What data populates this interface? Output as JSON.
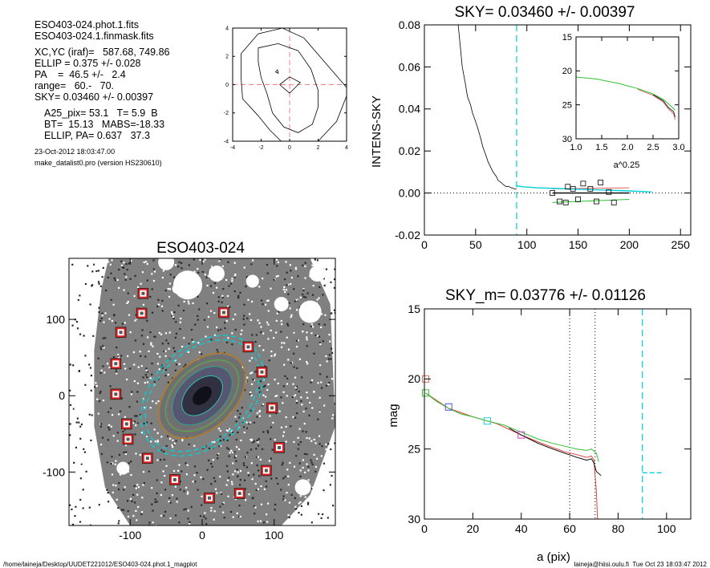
{
  "info": {
    "lines_a": [
      "ESO403-024.phot.1.fits",
      "ESO403-024.1.finmask.fits"
    ],
    "lines_b": [
      "XC,YC (iraf)=   587.68, 749.86",
      "ELLIP = 0.375 +/- 0.028",
      "PA    =  46.5 +/-   2.4",
      "range=   60.-   70.",
      "SKY= 0.03460 +/- 0.00397"
    ],
    "lines_c": [
      "A25_pix= 53.1   T= 5.9  B",
      "BT=  15.13   MABS=-18.33",
      "ELLIP, PA= 0.637   37.3"
    ],
    "date": "23-Oct-2012 18:03:47.00",
    "program": "make_datalist0.pro (version HS230610)"
  },
  "footer": {
    "path": "/home/laineja/Desktop/UUDET221012/ESO403-024.phot.1_magplot",
    "user": "laineja@hiisi.oulu.fi  Tue Oct 23 18:03:47 2012"
  },
  "colors": {
    "accent_cyan": "#00d0d8",
    "mask_red": "#e02020",
    "ellipse_orange": "#b87a1a"
  },
  "chart_data": [
    {
      "id": "contour",
      "type": "contour",
      "title": "",
      "xlim": [
        -4,
        4
      ],
      "ylim": [
        -4,
        4
      ],
      "xticks": [
        -4,
        -2,
        0,
        2,
        4
      ],
      "yticks": [
        -4,
        -2,
        0,
        2,
        4
      ],
      "contours": [
        [
          [
            -3.4,
            2.2
          ],
          [
            -2.2,
            3.6
          ],
          [
            -0.5,
            4.0
          ],
          [
            1.0,
            3.3
          ],
          [
            2.8,
            1.2
          ],
          [
            4.0,
            -0.2
          ],
          [
            4.0,
            -0.8
          ],
          [
            3.3,
            -2.6
          ],
          [
            2.0,
            -4.0
          ],
          [
            -0.6,
            -4.0
          ],
          [
            -1.4,
            -3.2
          ],
          [
            -2.2,
            -2.2
          ],
          [
            -3.3,
            -1.0
          ],
          [
            -3.4,
            0.4
          ],
          [
            -3.4,
            2.2
          ]
        ],
        [
          [
            -2.2,
            2.6
          ],
          [
            -0.8,
            2.9
          ],
          [
            0.6,
            2.4
          ],
          [
            1.5,
            1.1
          ],
          [
            2.0,
            -0.4
          ],
          [
            2.0,
            -1.6
          ],
          [
            1.6,
            -2.8
          ],
          [
            0.6,
            -3.4
          ],
          [
            -0.4,
            -3.0
          ],
          [
            -1.2,
            -2.0
          ],
          [
            -1.6,
            -0.6
          ],
          [
            -2.0,
            0.5
          ],
          [
            -2.2,
            1.6
          ],
          [
            -2.2,
            2.6
          ]
        ],
        [
          [
            -0.7,
            0.0
          ],
          [
            0.0,
            0.55
          ],
          [
            0.75,
            0.15
          ],
          [
            0.0,
            -0.6
          ],
          [
            -0.7,
            0.0
          ]
        ],
        [
          [
            -1.0,
            0.9
          ],
          [
            -0.85,
            1.05
          ],
          [
            -0.8,
            0.8
          ],
          [
            -1.0,
            0.9
          ]
        ]
      ]
    },
    {
      "id": "sky",
      "type": "line",
      "title": "SKY= 0.03460 +/- 0.00397",
      "xlabel": "",
      "ylabel": "INTENS-SKY",
      "xlim": [
        0,
        260
      ],
      "ylim": [
        -0.02,
        0.08
      ],
      "xticks": [
        0,
        50,
        100,
        150,
        200,
        250
      ],
      "yticks": [
        -0.02,
        0.0,
        0.02,
        0.04,
        0.06,
        0.08
      ],
      "xtick_labels": [
        "0",
        "50",
        "100",
        "150",
        "200",
        "250"
      ],
      "ytick_labels": [
        "-0.02",
        "0.00",
        "0.02",
        "0.04",
        "0.06",
        "0.08"
      ],
      "profile": [
        [
          33,
          0.08
        ],
        [
          35,
          0.07
        ],
        [
          37,
          0.06
        ],
        [
          40,
          0.052
        ],
        [
          42,
          0.046
        ],
        [
          45,
          0.042
        ],
        [
          47,
          0.038
        ],
        [
          50,
          0.034
        ],
        [
          52,
          0.031
        ],
        [
          55,
          0.026
        ],
        [
          57,
          0.022
        ],
        [
          60,
          0.018
        ],
        [
          62,
          0.015
        ],
        [
          65,
          0.012
        ],
        [
          67,
          0.01
        ],
        [
          70,
          0.008
        ],
        [
          72,
          0.006
        ],
        [
          75,
          0.005
        ],
        [
          77,
          0.004
        ],
        [
          80,
          0.003
        ],
        [
          82,
          0.0032
        ],
        [
          85,
          0.0024
        ],
        [
          88,
          0.002
        ],
        [
          90,
          0.0018
        ]
      ],
      "cyan_line": [
        [
          90,
          0.0035
        ],
        [
          95,
          0.003
        ],
        [
          110,
          0.0025
        ],
        [
          140,
          0.002
        ],
        [
          170,
          0.0015
        ],
        [
          200,
          0.001
        ],
        [
          222,
          0.0005
        ]
      ],
      "black_line": [
        [
          125,
          0.0
        ],
        [
          200,
          0.0
        ]
      ],
      "green_line": [
        [
          125,
          -0.0045
        ],
        [
          200,
          -0.003
        ]
      ],
      "red_line": [
        [
          125,
          0.002
        ],
        [
          200,
          0.0025
        ]
      ],
      "squares": [
        [
          125,
          0.0
        ],
        [
          132,
          -0.004
        ],
        [
          140,
          0.003
        ],
        [
          145,
          0.002
        ],
        [
          150,
          -0.003
        ],
        [
          155,
          0.0045
        ],
        [
          162,
          0.002
        ],
        [
          168,
          -0.004
        ],
        [
          172,
          0.005
        ],
        [
          180,
          0.0005
        ],
        [
          185,
          -0.0045
        ],
        [
          138,
          -0.0045
        ]
      ],
      "vline": 90,
      "inset": {
        "xlabel": "a^0.25",
        "xlim": [
          1.0,
          3.0
        ],
        "ylim": [
          15,
          30
        ],
        "xticks": [
          1.0,
          1.5,
          2.0,
          2.5,
          3.0
        ],
        "yticks": [
          15,
          20,
          25,
          30
        ],
        "xtick_labels": [
          "1.0",
          "1.5",
          "2.0",
          "2.5",
          "3.0"
        ],
        "ytick_labels": [
          "15",
          "20",
          "25",
          "30"
        ],
        "green": [
          [
            1.0,
            20.9
          ],
          [
            1.4,
            21.2
          ],
          [
            1.8,
            21.8
          ],
          [
            2.2,
            22.6
          ],
          [
            2.5,
            23.4
          ],
          [
            2.7,
            24.2
          ],
          [
            2.85,
            25.2
          ],
          [
            2.93,
            25.8
          ]
        ],
        "red": [
          [
            2.2,
            22.7
          ],
          [
            2.5,
            23.6
          ],
          [
            2.7,
            24.6
          ],
          [
            2.8,
            25.6
          ],
          [
            2.9,
            26.3
          ],
          [
            2.93,
            27.2
          ]
        ],
        "black": [
          [
            2.5,
            23.5
          ],
          [
            2.7,
            24.4
          ],
          [
            2.8,
            25.4
          ],
          [
            2.9,
            26.0
          ],
          [
            2.93,
            26.8
          ]
        ]
      }
    },
    {
      "id": "galaxy",
      "type": "image",
      "title": "ESO403-024",
      "xlim": [
        -185,
        185
      ],
      "ylim": [
        -170,
        180
      ],
      "xticks": [
        -100,
        0,
        100
      ],
      "yticks": [
        -100,
        0,
        100
      ],
      "xtick_labels": [
        "-100",
        "0",
        "100"
      ],
      "ytick_labels": [
        "-100",
        "0",
        "100"
      ],
      "mask_boxes": [
        [
          -82,
          134
        ],
        [
          -84,
          108
        ],
        [
          -113,
          83
        ],
        [
          -120,
          42
        ],
        [
          -120,
          2
        ],
        [
          -105,
          -37
        ],
        [
          -103,
          -57
        ],
        [
          -76,
          -82
        ],
        [
          -38,
          -110
        ],
        [
          10,
          -134
        ],
        [
          52,
          -128
        ],
        [
          89,
          -98
        ],
        [
          107,
          -68
        ],
        [
          97,
          -16
        ],
        [
          83,
          31
        ],
        [
          64,
          64
        ],
        [
          30,
          109
        ]
      ]
    },
    {
      "id": "mag",
      "type": "line",
      "title": "SKY_m=  0.03776 +/- 0.01126",
      "xlabel": "a (pix)",
      "ylabel": "mag",
      "xlim": [
        0,
        110
      ],
      "ylim": [
        15,
        30
      ],
      "xticks": [
        0,
        20,
        40,
        60,
        80,
        100
      ],
      "yticks": [
        15,
        20,
        25,
        30
      ],
      "xtick_labels": [
        "0",
        "20",
        "40",
        "60",
        "80",
        "100"
      ],
      "ytick_labels": [
        "15",
        "20",
        "25",
        "30"
      ],
      "green": [
        [
          0.5,
          21.0
        ],
        [
          5,
          21.6
        ],
        [
          10,
          22.1
        ],
        [
          15,
          22.5
        ],
        [
          20,
          22.7
        ],
        [
          26,
          23.0
        ],
        [
          33,
          23.3
        ],
        [
          40,
          23.8
        ],
        [
          47,
          24.3
        ],
        [
          53,
          24.6
        ],
        [
          58,
          24.8
        ],
        [
          63,
          25.0
        ],
        [
          67,
          25.1
        ],
        [
          69,
          25.0
        ],
        [
          71,
          25.3
        ],
        [
          72,
          25.9
        ]
      ],
      "red": [
        [
          0.5,
          21.0
        ],
        [
          10,
          22.1
        ],
        [
          20,
          22.7
        ],
        [
          30,
          23.2
        ],
        [
          40,
          24.0
        ],
        [
          47,
          24.5
        ],
        [
          53,
          24.9
        ],
        [
          58,
          25.2
        ],
        [
          63,
          25.4
        ],
        [
          67,
          25.6
        ],
        [
          69,
          25.5
        ],
        [
          70,
          25.8
        ],
        [
          71,
          28.0
        ],
        [
          71.5,
          30.0
        ]
      ],
      "black": [
        [
          35,
          23.5
        ],
        [
          40,
          24.0
        ],
        [
          47,
          24.6
        ],
        [
          53,
          25.0
        ],
        [
          58,
          25.3
        ],
        [
          63,
          25.6
        ],
        [
          67,
          25.8
        ],
        [
          69,
          25.7
        ],
        [
          70,
          26.0
        ],
        [
          71,
          26.6
        ],
        [
          73,
          26.9
        ]
      ],
      "markers": [
        {
          "x": 0.5,
          "y": 20.0,
          "color": "#e07060"
        },
        {
          "x": 0.5,
          "y": 21.0,
          "color": "#40c040"
        },
        {
          "x": 10,
          "y": 22.0,
          "color": "#5050d0"
        },
        {
          "x": 26,
          "y": 23.0,
          "color": "#20d0e0"
        },
        {
          "x": 40,
          "y": 24.0,
          "color": "#d040c0"
        }
      ],
      "vlines_dotted": [
        60,
        70.5
      ],
      "vline_cyan": 90,
      "hline_cyan": {
        "x0": 90,
        "x1": 98,
        "y": 26.7
      }
    }
  ]
}
